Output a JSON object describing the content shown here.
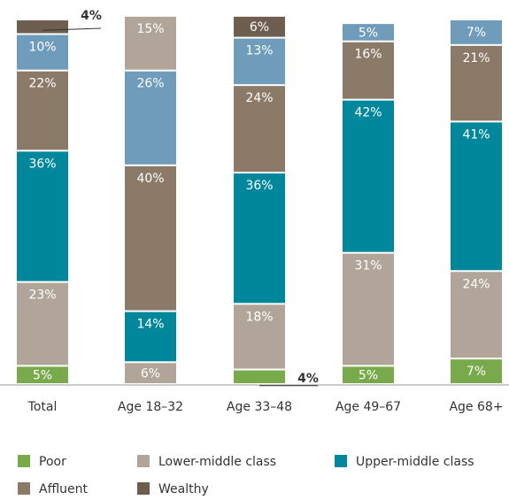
{
  "chart_data": {
    "type": "stacked_bar",
    "categories": [
      "Total",
      "Age 18–32",
      "Age 33–48",
      "Age 49–67",
      "Age 68+"
    ],
    "ylim": [
      0,
      100
    ],
    "series": [
      {
        "name": "Poor",
        "color": "#78a94a",
        "values": [
          5,
          null,
          4,
          5,
          7
        ],
        "value_labels": [
          "5%",
          null,
          "4%",
          "5%",
          "7%"
        ]
      },
      {
        "name": "Lower-middle class",
        "color": "#b0a598",
        "values": [
          23,
          6,
          18,
          31,
          24
        ],
        "value_labels": [
          "23%",
          "6%",
          "18%",
          "31%",
          "24%"
        ]
      },
      {
        "name": "Upper-middle class",
        "color": "#00879c",
        "values": [
          36,
          14,
          36,
          42,
          41
        ],
        "value_labels": [
          "36%",
          "14%",
          "36%",
          "42%",
          "41%"
        ]
      },
      {
        "name": "Affluent",
        "color": "#8c7a69",
        "values": [
          22,
          40,
          24,
          16,
          21
        ],
        "value_labels": [
          "22%",
          "40%",
          "24%",
          "16%",
          "21%"
        ]
      },
      {
        "name": null,
        "color": "#6f9cba",
        "values": [
          10,
          26,
          13,
          5,
          7
        ],
        "value_labels": [
          "10%",
          "26%",
          "13%",
          "5%",
          "7%"
        ]
      },
      {
        "name": "Wealthy",
        "color": "#6e5e50",
        "colors": [
          null,
          "#b0a598",
          null,
          null,
          null
        ],
        "values": [
          4,
          15,
          6,
          null,
          null
        ],
        "value_labels": [
          "4%",
          "15%",
          "6%",
          null,
          null
        ]
      }
    ]
  }
}
